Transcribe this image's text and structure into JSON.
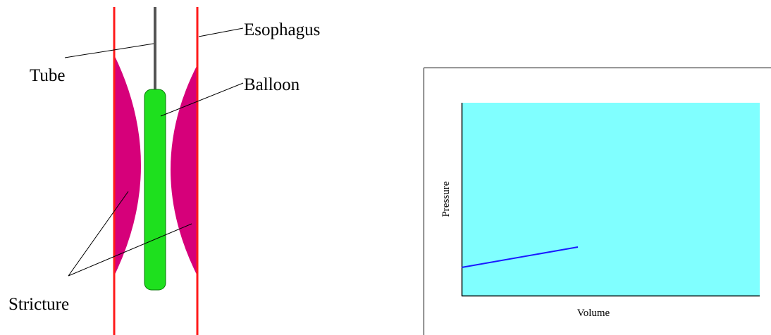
{
  "labels": {
    "esophagus": "Esophagus",
    "tube": "Tube",
    "balloon": "Balloon",
    "stricture": "Stricture"
  },
  "plot": {
    "y_label": "Pressure",
    "x_label": "Volume"
  }
}
